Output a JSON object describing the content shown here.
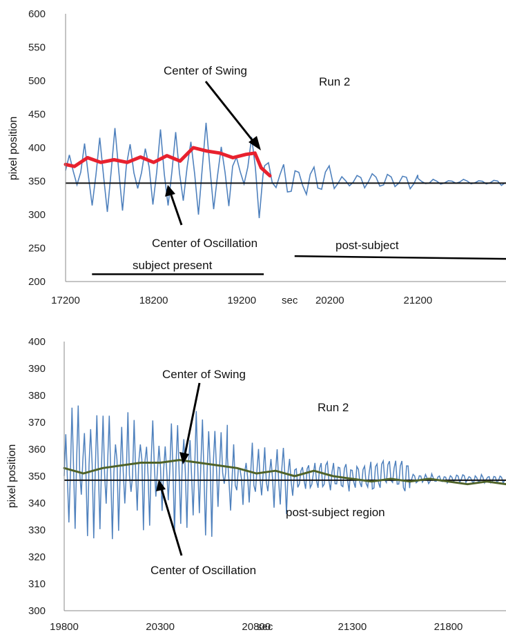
{
  "chart_data": [
    {
      "type": "line",
      "title": "",
      "xlabel": "sec",
      "ylabel": "pixel position",
      "xlim": [
        17200,
        22200
      ],
      "ylim": [
        200,
        600
      ],
      "x_ticks": [
        17200,
        18200,
        19200,
        20200,
        21200
      ],
      "y_ticks": [
        200,
        250,
        300,
        350,
        400,
        450,
        500,
        550,
        600
      ],
      "grid": "none",
      "annotations": {
        "center_of_swing": "Center of Swing",
        "run": "Run 2",
        "center_of_oscillation": "Center of Oscillation",
        "subject_present": "subject present",
        "post_subject": "post-subject"
      },
      "reference_line_y": 347,
      "series": [
        {
          "role": "oscillation",
          "color": "#4f81bd",
          "segments": [
            {
              "x_start": 17200,
              "x_end": 19460,
              "center": 365,
              "amplitude": 65
            },
            {
              "x_start": 19460,
              "x_end": 20250,
              "center": 355,
              "amplitude": 30
            },
            {
              "x_start": 20250,
              "x_end": 21200,
              "center": 350,
              "amplitude": 14
            },
            {
              "x_start": 21200,
              "x_end": 22200,
              "center": 349,
              "amplitude": 5
            }
          ],
          "peaks_max": 465,
          "troughs_min": 260
        },
        {
          "role": "center_of_swing",
          "color": "#e8212e",
          "x": [
            17200,
            17300,
            17450,
            17600,
            17750,
            17900,
            18050,
            18200,
            18350,
            18500,
            18650,
            18800,
            18950,
            19100,
            19250,
            19350,
            19420,
            19520
          ],
          "y": [
            375,
            372,
            385,
            378,
            382,
            378,
            386,
            378,
            388,
            380,
            400,
            395,
            392,
            385,
            390,
            392,
            370,
            358
          ]
        }
      ],
      "segment_markers": [
        {
          "label": "subject present",
          "x_start": 17500,
          "x_end": 19450,
          "y": 211
        },
        {
          "label": "post-subject",
          "x_start": 19800,
          "x_end": 22200,
          "y": 238
        }
      ]
    },
    {
      "type": "line",
      "title": "",
      "xlabel": "sec",
      "ylabel": "pixel position",
      "xlim": [
        19800,
        22100
      ],
      "ylim": [
        300,
        400
      ],
      "x_ticks": [
        19800,
        20300,
        20800,
        21300,
        21800
      ],
      "y_ticks": [
        300,
        310,
        320,
        330,
        340,
        350,
        360,
        370,
        380,
        390,
        400
      ],
      "grid": "none",
      "annotations": {
        "center_of_swing": "Center of Swing",
        "run": "Run 2",
        "post_subject_region": "post-subject region",
        "center_of_oscillation": "Center of Oscillation"
      },
      "reference_line_y": 348.5,
      "series": [
        {
          "role": "oscillation",
          "color": "#4f81bd",
          "segments": [
            {
              "x_start": 19800,
              "x_end": 20650,
              "center": 353,
              "amplitude": 25
            },
            {
              "x_start": 20650,
              "x_end": 21000,
              "center": 350,
              "amplitude": 12
            },
            {
              "x_start": 21000,
              "x_end": 21600,
              "center": 350,
              "amplitude": 7
            },
            {
              "x_start": 21600,
              "x_end": 22100,
              "center": 349,
              "amplitude": 2
            }
          ],
          "peaks_max": 385,
          "troughs_min": 323
        },
        {
          "role": "center_of_swing",
          "color": "#4f6228",
          "x": [
            19800,
            19900,
            20000,
            20100,
            20200,
            20300,
            20400,
            20500,
            20600,
            20700,
            20800,
            20900,
            21000,
            21100,
            21200,
            21300,
            21400,
            21500,
            21600,
            21700,
            21800,
            21900,
            22000,
            22100
          ],
          "y": [
            353,
            351,
            353,
            354,
            355,
            355,
            356,
            355,
            354,
            353,
            351,
            352,
            350,
            352,
            350,
            349,
            348,
            349,
            348,
            349,
            348,
            347,
            348,
            347
          ]
        }
      ]
    }
  ]
}
